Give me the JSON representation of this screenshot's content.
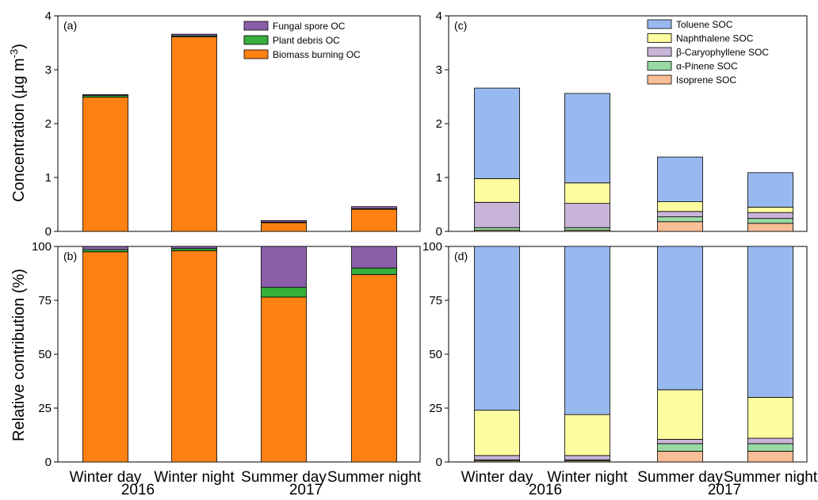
{
  "figure": {
    "ylabels": {
      "top": [
        "Concentration (µg m",
        "-3",
        ")"
      ],
      "bottom": "Relative contribution (%)"
    },
    "categories": [
      "Winter day",
      "Winter night",
      "Summer day",
      "Summer night"
    ],
    "year_labels": [
      "2016",
      "2017"
    ]
  },
  "chart_data": [
    {
      "id": "a",
      "type": "bar",
      "stacked": true,
      "panel_label": "(a)",
      "categories": [
        "Winter day",
        "Winter night",
        "Summer day",
        "Summer night"
      ],
      "ylim": [
        0,
        4
      ],
      "yticks": [
        0,
        1,
        2,
        3,
        4
      ],
      "ylabel": "Concentration (µg m-3)",
      "legend_position": "top-right",
      "series": [
        {
          "name": "Biomass burning OC",
          "color": "#ff8114",
          "values": [
            2.49,
            3.61,
            0.16,
            0.41
          ]
        },
        {
          "name": "Plant debris OC",
          "color": "#35b03a",
          "values": [
            0.03,
            0.02,
            0.01,
            0.01
          ]
        },
        {
          "name": "Fungal spore OC",
          "color": "#8a5ea8",
          "values": [
            0.02,
            0.03,
            0.03,
            0.04
          ]
        }
      ]
    },
    {
      "id": "b",
      "type": "bar",
      "stacked": true,
      "panel_label": "(b)",
      "categories": [
        "Winter day",
        "Winter night",
        "Summer day",
        "Summer night"
      ],
      "ylim": [
        0,
        100
      ],
      "yticks": [
        0,
        25,
        50,
        75,
        100
      ],
      "ylabel": "Relative contribution (%)",
      "series": [
        {
          "name": "Biomass burning OC",
          "color": "#ff8114",
          "values": [
            97.5,
            98,
            76.5,
            87
          ]
        },
        {
          "name": "Plant debris OC",
          "color": "#35b03a",
          "values": [
            1,
            1,
            4.5,
            3
          ]
        },
        {
          "name": "Fungal spore OC",
          "color": "#8a5ea8",
          "values": [
            1.5,
            1,
            19,
            10
          ]
        }
      ]
    },
    {
      "id": "c",
      "type": "bar",
      "stacked": true,
      "panel_label": "(c)",
      "categories": [
        "Winter day",
        "Winter night",
        "Summer day",
        "Summer night"
      ],
      "ylim": [
        0,
        4
      ],
      "yticks": [
        0,
        1,
        2,
        3,
        4
      ],
      "legend_position": "top-right",
      "series": [
        {
          "name": "Isoprene SOC",
          "color": "#f9be95",
          "values": [
            0.02,
            0.02,
            0.18,
            0.15
          ]
        },
        {
          "name": "α-Pinene SOC",
          "color": "#98d9a4",
          "values": [
            0.05,
            0.05,
            0.09,
            0.09
          ]
        },
        {
          "name": "β-Caryophyllene SOC",
          "color": "#c8b4d8",
          "values": [
            0.47,
            0.45,
            0.1,
            0.11
          ]
        },
        {
          "name": "Naphthalene SOC",
          "color": "#fdfda0",
          "values": [
            0.44,
            0.38,
            0.18,
            0.1
          ]
        },
        {
          "name": "Toluene SOC",
          "color": "#98b9ef",
          "values": [
            1.68,
            1.66,
            0.83,
            0.64
          ]
        }
      ]
    },
    {
      "id": "d",
      "type": "bar",
      "stacked": true,
      "panel_label": "(d)",
      "categories": [
        "Winter day",
        "Winter night",
        "Summer day",
        "Summer night"
      ],
      "ylim": [
        0,
        100
      ],
      "yticks": [
        0,
        25,
        50,
        75,
        100
      ],
      "series": [
        {
          "name": "Isoprene SOC",
          "color": "#f9be95",
          "values": [
            0.5,
            0.5,
            5,
            5
          ]
        },
        {
          "name": "α-Pinene SOC",
          "color": "#98d9a4",
          "values": [
            0.5,
            0.5,
            3.5,
            3.5
          ]
        },
        {
          "name": "β-Caryophyllene SOC",
          "color": "#c8b4d8",
          "values": [
            2,
            2,
            2,
            2.5
          ]
        },
        {
          "name": "Naphthalene SOC",
          "color": "#fdfda0",
          "values": [
            21,
            19,
            23,
            19
          ]
        },
        {
          "name": "Toluene SOC",
          "color": "#98b9ef",
          "values": [
            76,
            78,
            66.5,
            70
          ]
        }
      ]
    }
  ]
}
